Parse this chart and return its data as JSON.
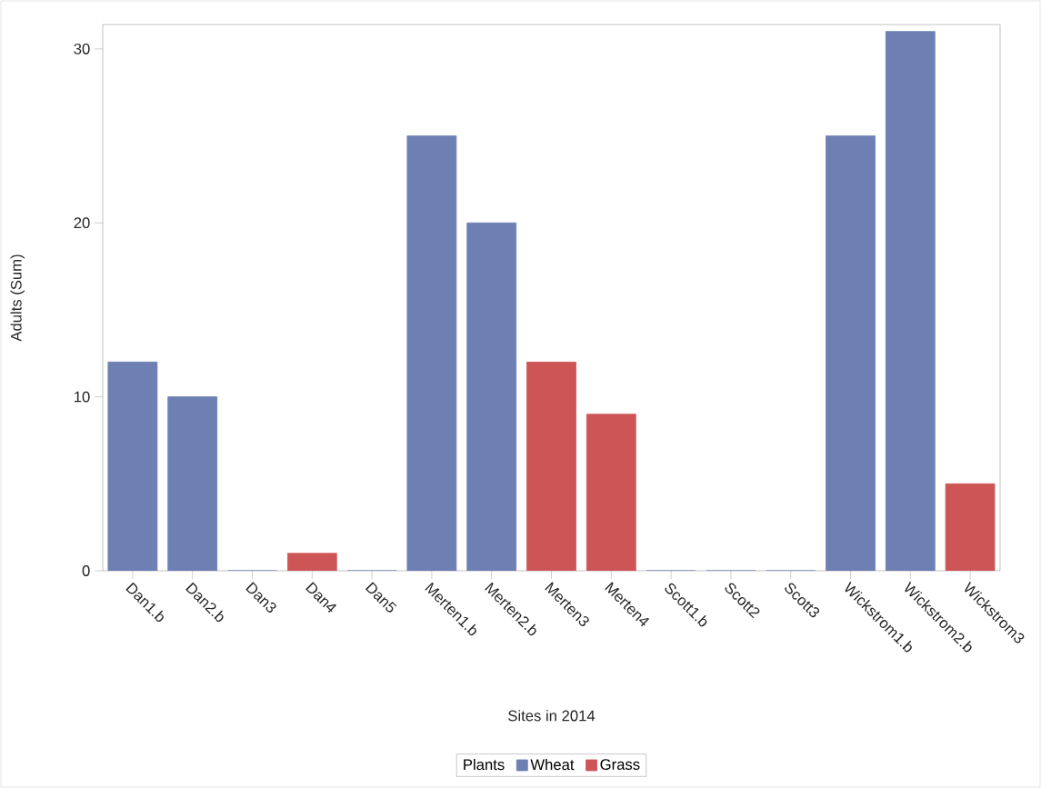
{
  "chart_data": {
    "type": "bar",
    "xlabel": "Sites in 2014",
    "ylabel": "Adults (Sum)",
    "legend_title": "Plants",
    "categories": [
      "Dan1.b",
      "Dan2.b",
      "Dan3",
      "Dan4",
      "Dan5",
      "Merten1.b",
      "Merten2.b",
      "Merten3",
      "Merten4",
      "Scott1.b",
      "Scott2",
      "Scott3",
      "Wickstrom1.b",
      "Wickstrom2.b",
      "Wickstrom3"
    ],
    "series": [
      {
        "name": "Wheat",
        "color": "#6d7fb3",
        "values": [
          12,
          10,
          0,
          null,
          0,
          25,
          20,
          null,
          null,
          0,
          0,
          0,
          25,
          31,
          null
        ]
      },
      {
        "name": "Grass",
        "color": "#cd5555",
        "values": [
          null,
          null,
          null,
          1,
          null,
          null,
          null,
          12,
          9,
          null,
          null,
          null,
          null,
          null,
          5
        ]
      }
    ],
    "stacked": true,
    "ylim": [
      0,
      31.4
    ],
    "yticks": [
      0,
      10,
      20,
      30
    ],
    "grid": false,
    "legend": "bottom"
  }
}
